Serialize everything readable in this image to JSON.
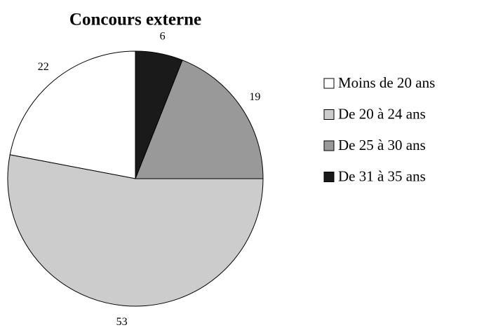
{
  "chart_data": {
    "type": "pie",
    "title": "Concours externe",
    "categories": [
      "Moins de 20 ans",
      "De 20 à 24 ans",
      "De 25 à 30 ans",
      "De 31 à 35 ans"
    ],
    "values": [
      22,
      53,
      19,
      6
    ],
    "colors": [
      "#ffffff",
      "#cccccc",
      "#999999",
      "#1a1a1a"
    ],
    "legend": "right"
  }
}
